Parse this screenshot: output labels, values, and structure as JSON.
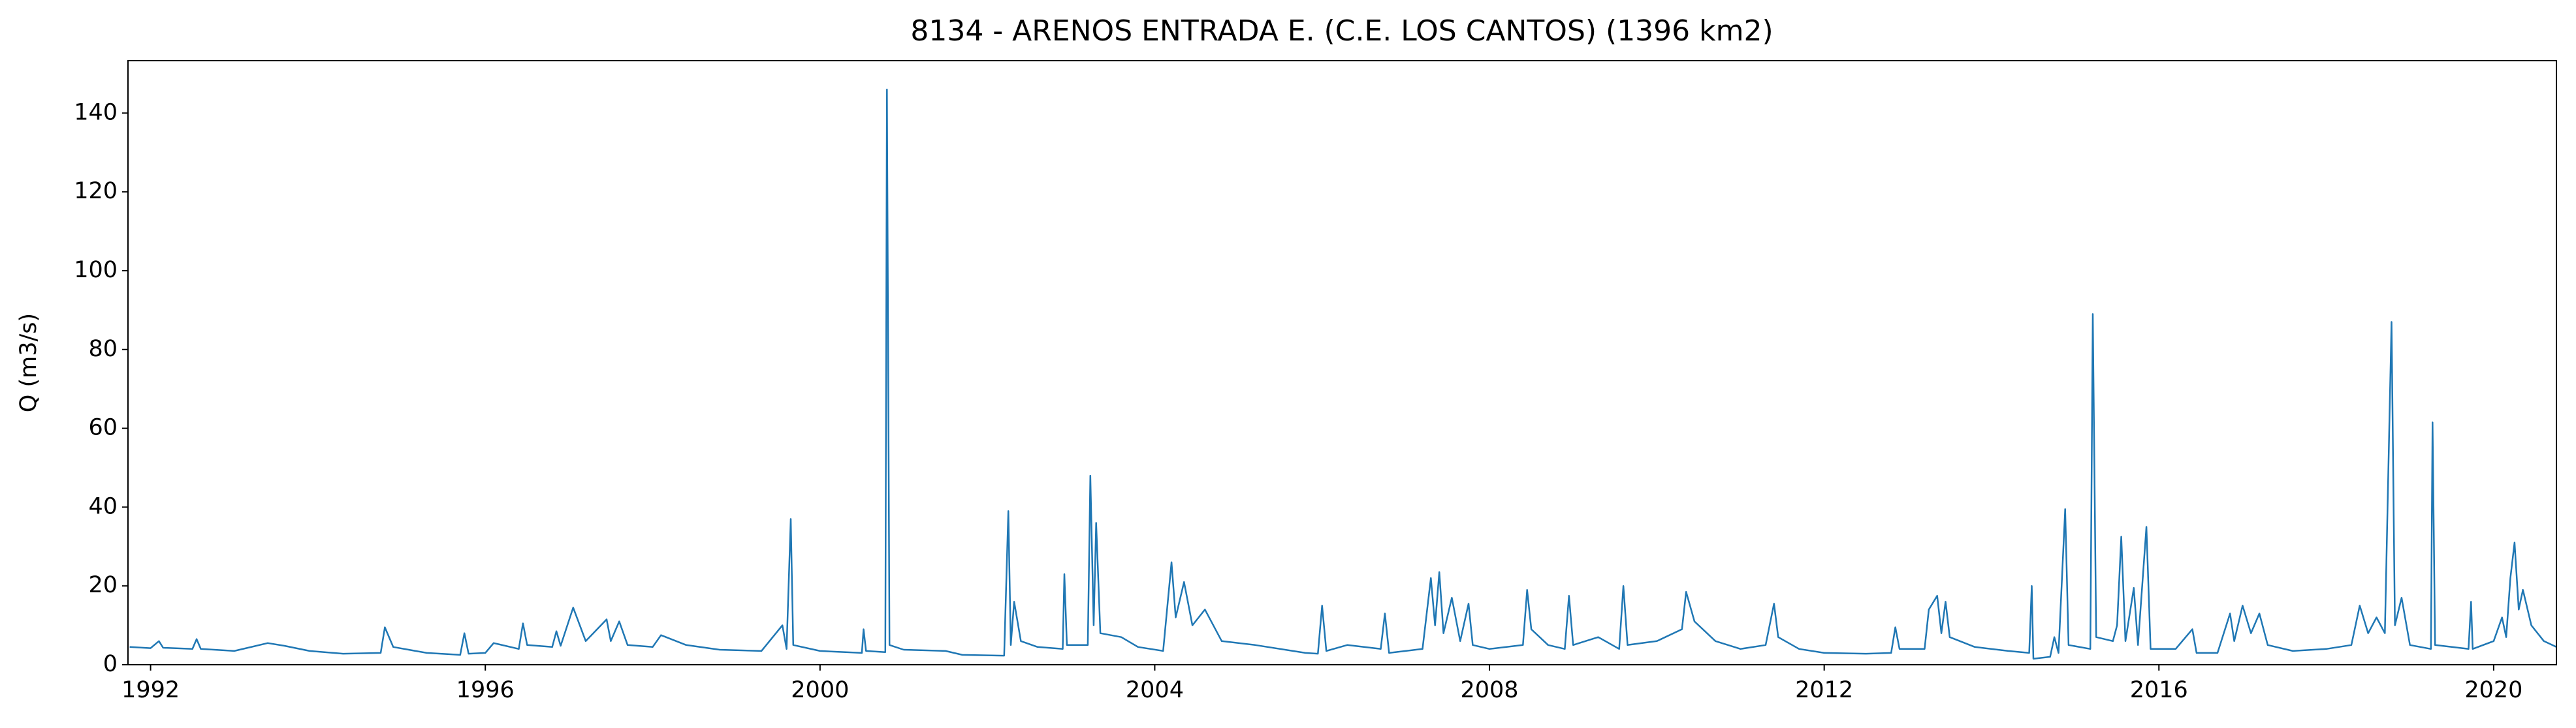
{
  "chart_data": {
    "type": "line",
    "title": "8134 - ARENOS ENTRADA E. (C.E. LOS CANTOS) (1396 km2)",
    "ylabel": "Q (m3/s)",
    "xlim": [
      1991.73,
      2020.75
    ],
    "ylim": [
      0,
      153.3
    ],
    "xticks": [
      1992,
      1996,
      2000,
      2004,
      2008,
      2012,
      2016,
      2020
    ],
    "yticks": [
      0,
      20,
      40,
      60,
      80,
      100,
      120,
      140
    ],
    "grid": false,
    "series": [
      {
        "color": "#1f77b4",
        "x": [
          1991.75,
          1992.0,
          1992.1,
          1992.15,
          1992.5,
          1992.55,
          1992.6,
          1993.0,
          1993.4,
          1993.6,
          1993.9,
          1994.3,
          1994.75,
          1994.8,
          1994.9,
          1995.3,
          1995.7,
          1995.75,
          1995.8,
          1996.0,
          1996.1,
          1996.4,
          1996.45,
          1996.5,
          1996.8,
          1996.85,
          1996.9,
          1997.05,
          1997.2,
          1997.45,
          1997.5,
          1997.6,
          1997.7,
          1998.0,
          1998.1,
          1998.4,
          1998.8,
          1999.3,
          1999.55,
          1999.6,
          1999.65,
          1999.68,
          2000.0,
          2000.5,
          2000.52,
          2000.55,
          2000.78,
          2000.8,
          2000.83,
          2001.0,
          2001.5,
          2001.7,
          2002.2,
          2002.25,
          2002.28,
          2002.32,
          2002.4,
          2002.6,
          2002.9,
          2002.92,
          2002.95,
          2003.2,
          2003.23,
          2003.27,
          2003.3,
          2003.35,
          2003.6,
          2003.8,
          2004.1,
          2004.2,
          2004.25,
          2004.35,
          2004.45,
          2004.6,
          2004.8,
          2005.2,
          2005.8,
          2005.95,
          2006.0,
          2006.05,
          2006.3,
          2006.7,
          2006.75,
          2006.8,
          2007.2,
          2007.3,
          2007.35,
          2007.4,
          2007.45,
          2007.55,
          2007.65,
          2007.75,
          2007.8,
          2008.0,
          2008.4,
          2008.45,
          2008.5,
          2008.7,
          2008.9,
          2008.95,
          2009.0,
          2009.3,
          2009.55,
          2009.6,
          2009.65,
          2010.0,
          2010.3,
          2010.35,
          2010.45,
          2010.7,
          2011.0,
          2011.3,
          2011.4,
          2011.45,
          2011.7,
          2012.0,
          2012.5,
          2012.8,
          2012.85,
          2012.9,
          2013.2,
          2013.25,
          2013.35,
          2013.4,
          2013.45,
          2013.5,
          2013.8,
          2014.2,
          2014.45,
          2014.48,
          2014.5,
          2014.7,
          2014.75,
          2014.8,
          2014.88,
          2014.92,
          2015.18,
          2015.21,
          2015.25,
          2015.45,
          2015.5,
          2015.55,
          2015.6,
          2015.7,
          2015.75,
          2015.85,
          2015.9,
          2016.2,
          2016.4,
          2016.45,
          2016.7,
          2016.85,
          2016.9,
          2017.0,
          2017.1,
          2017.2,
          2017.3,
          2017.6,
          2018.0,
          2018.3,
          2018.4,
          2018.5,
          2018.6,
          2018.7,
          2018.78,
          2018.82,
          2018.9,
          2019.0,
          2019.25,
          2019.27,
          2019.3,
          2019.7,
          2019.73,
          2019.75,
          2020.0,
          2020.1,
          2020.15,
          2020.2,
          2020.25,
          2020.3,
          2020.35,
          2020.45,
          2020.6,
          2020.75
        ],
        "values": [
          4.5,
          4.2,
          6,
          4.3,
          4,
          6.5,
          4,
          3.5,
          5.5,
          4.8,
          3.5,
          2.8,
          3,
          9.5,
          4.5,
          3,
          2.5,
          8,
          2.8,
          3,
          5.5,
          4,
          10.5,
          5,
          4.5,
          8.5,
          4.8,
          14.5,
          6,
          11.5,
          6,
          11,
          5,
          4.5,
          7.5,
          5,
          3.8,
          3.5,
          10,
          4,
          37,
          5,
          3.5,
          3,
          9,
          3.5,
          3.2,
          146,
          5,
          3.8,
          3.5,
          2.5,
          2.3,
          39,
          5,
          16,
          6,
          4.5,
          4,
          23,
          5,
          5,
          48,
          10,
          36,
          8,
          7,
          4.5,
          3.5,
          26,
          12,
          21,
          10,
          14,
          6,
          5,
          3,
          2.8,
          15,
          3.5,
          5,
          4,
          13,
          3,
          4,
          22,
          10,
          23.5,
          8,
          17,
          6,
          15.5,
          5,
          4,
          5,
          19,
          9,
          5,
          4,
          17.5,
          5,
          7,
          4,
          20,
          5,
          6,
          9,
          18.5,
          11,
          6,
          4,
          5,
          15.5,
          7,
          4,
          3,
          2.8,
          3,
          9.5,
          4,
          4,
          14,
          17.5,
          8,
          16,
          7,
          4.5,
          3.5,
          3,
          20,
          1.5,
          2,
          7,
          3,
          39.5,
          5,
          4,
          89,
          7,
          6,
          10,
          32.5,
          6,
          19.5,
          5,
          35,
          4,
          4,
          9,
          3,
          3,
          13,
          6,
          15,
          8,
          13,
          5,
          3.5,
          4,
          5,
          15,
          8,
          12,
          8,
          87,
          10,
          17,
          5,
          4,
          61.5,
          5,
          4,
          16,
          4,
          6,
          12,
          7,
          22,
          31,
          14,
          19,
          10,
          6,
          4.5
        ]
      }
    ]
  }
}
